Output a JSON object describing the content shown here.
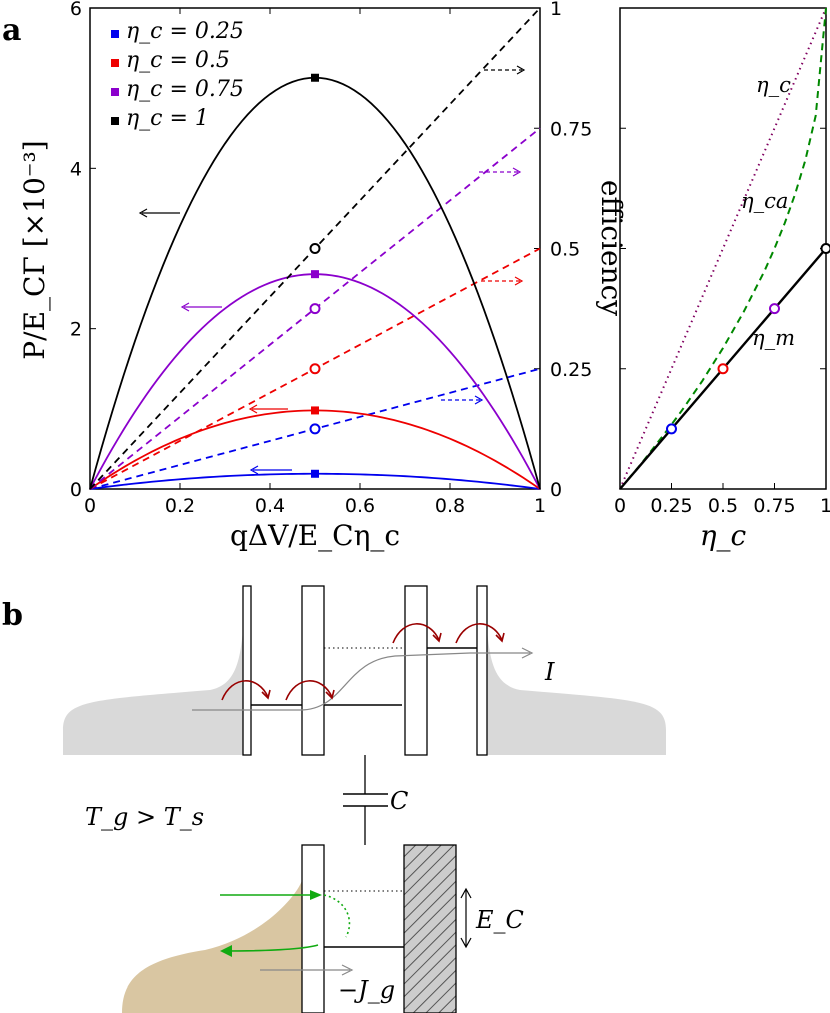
{
  "panel_a_label": "a",
  "panel_b_label": "b",
  "chart_data": [
    {
      "type": "line",
      "title": "",
      "xlabel": "qΔV/E_Cη_c",
      "ylabel": "P/E_CΓ [×10⁻³]",
      "y2label": "efficiency",
      "xlim": [
        0,
        1
      ],
      "ylim": [
        0,
        6
      ],
      "y2lim": [
        0,
        1
      ],
      "x_ticks": [
        "0",
        "0.2",
        "0.4",
        "0.6",
        "0.8",
        "1"
      ],
      "y_ticks": [
        "0",
        "2",
        "4",
        "6"
      ],
      "y2_ticks": [
        "0",
        "0.25",
        "0.5",
        "0.75",
        "1"
      ],
      "legend_position": "top-left",
      "series": [
        {
          "name": "η_c = 0.25",
          "eta_c": 0.25,
          "color": "#0000ee",
          "power_max": 0.19,
          "efficiency_end": 0.25,
          "efficiency_at_max": 0.125
        },
        {
          "name": "η_c = 0.5",
          "eta_c": 0.5,
          "color": "#ee0000",
          "power_max": 0.98,
          "efficiency_end": 0.5,
          "efficiency_at_max": 0.25
        },
        {
          "name": "η_c = 0.75",
          "eta_c": 0.75,
          "color": "#8b00cc",
          "power_max": 2.68,
          "efficiency_end": 0.75,
          "efficiency_at_max": 0.375
        },
        {
          "name": "η_c = 1",
          "eta_c": 1,
          "color": "#000000",
          "power_max": 5.13,
          "efficiency_end": 1.0,
          "efficiency_at_max": 0.5
        }
      ],
      "max_power_x": 0.5
    },
    {
      "type": "line",
      "title": "",
      "xlabel": "η_c",
      "xlim": [
        0,
        1
      ],
      "ylim": [
        0,
        1
      ],
      "x_ticks": [
        "0",
        "0.25",
        "0.5",
        "0.75",
        "1"
      ],
      "series": [
        {
          "name": "η_c",
          "style": "dotted",
          "color": "#800060",
          "points": [
            [
              0,
              0
            ],
            [
              1,
              1
            ]
          ]
        },
        {
          "name": "η_ca",
          "style": "dashed",
          "color": "#008800",
          "points": [
            [
              0,
              0
            ],
            [
              0.1,
              0.051
            ],
            [
              0.2,
              0.106
            ],
            [
              0.25,
              0.134
            ],
            [
              0.3,
              0.163
            ],
            [
              0.4,
              0.225
            ],
            [
              0.5,
              0.293
            ],
            [
              0.6,
              0.368
            ],
            [
              0.7,
              0.452
            ],
            [
              0.75,
              0.5
            ],
            [
              0.8,
              0.553
            ],
            [
              0.85,
              0.613
            ],
            [
              0.9,
              0.684
            ],
            [
              0.95,
              0.776
            ],
            [
              1.0,
              1.0
            ]
          ]
        },
        {
          "name": "η_m",
          "style": "solid",
          "color": "#000000",
          "points": [
            [
              0,
              0
            ],
            [
              1,
              0.5
            ]
          ]
        }
      ],
      "markers": [
        {
          "x": 0.25,
          "y": 0.125,
          "color": "#0000ee"
        },
        {
          "x": 0.5,
          "y": 0.25,
          "color": "#ee0000"
        },
        {
          "x": 0.75,
          "y": 0.375,
          "color": "#8b00cc"
        },
        {
          "x": 1.0,
          "y": 0.5,
          "color": "#000000"
        }
      ]
    }
  ],
  "diagram": {
    "current_label": "I",
    "capacitor_label": "C",
    "temperature_label": "T_g > T_s",
    "energy_label": "E_C",
    "heat_current_label": "−J_g"
  }
}
